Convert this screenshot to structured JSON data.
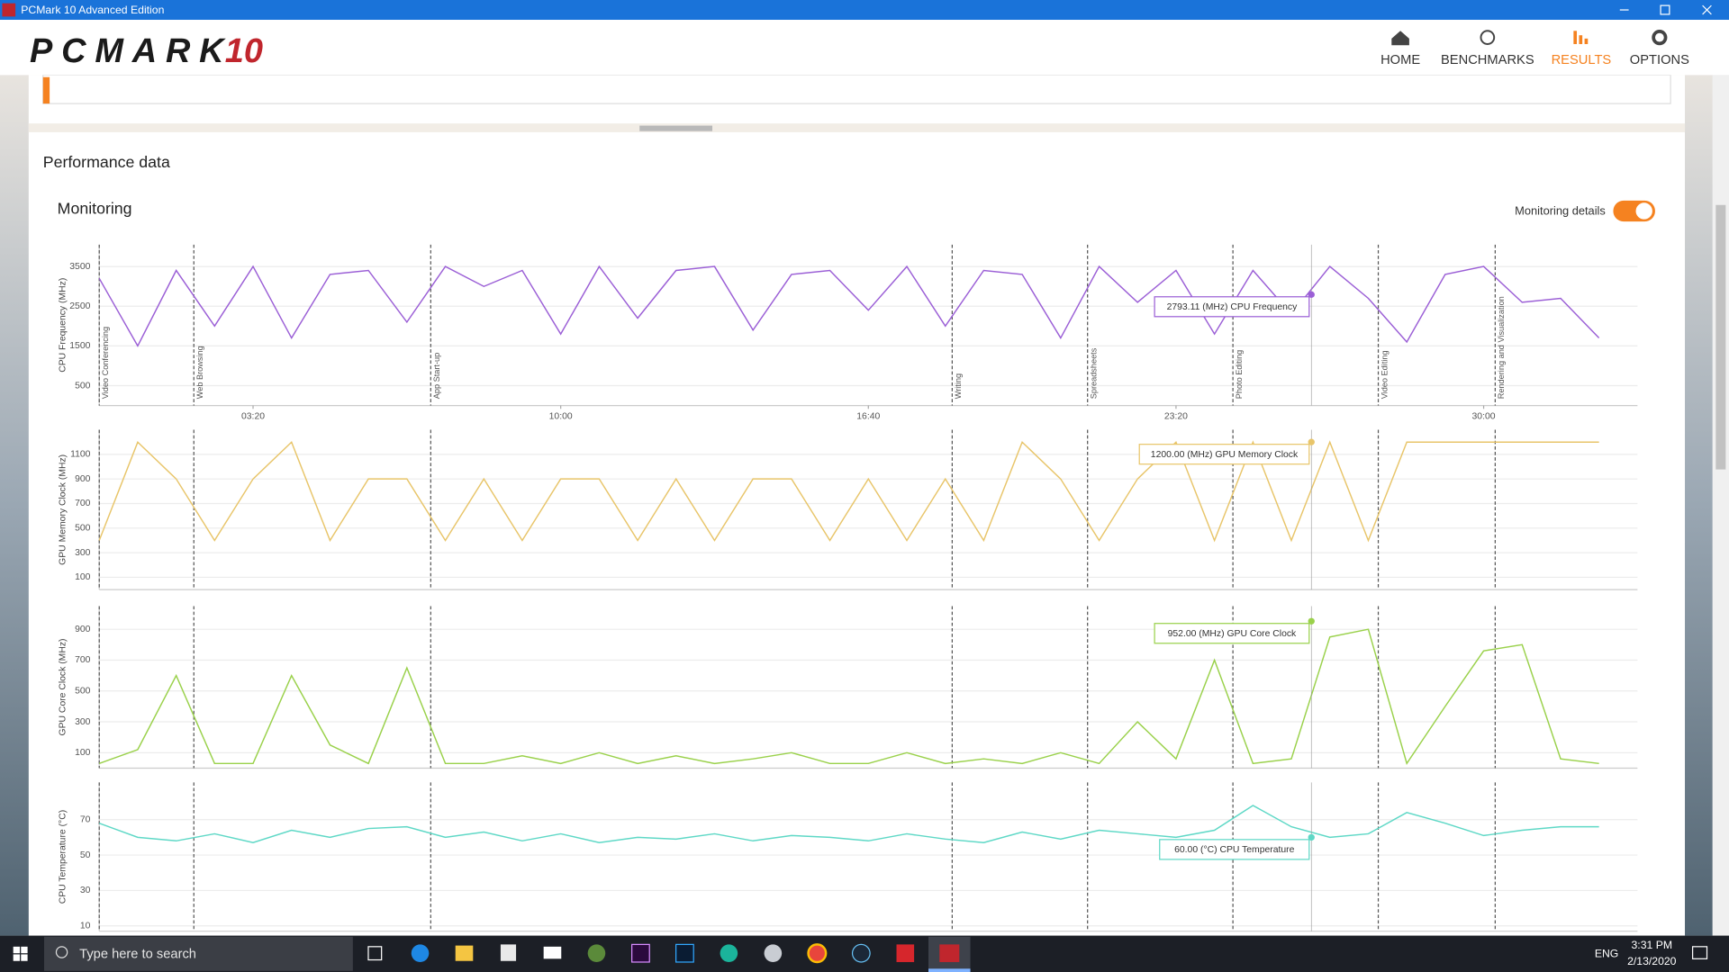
{
  "window": {
    "title": "PCMark 10 Advanced Edition"
  },
  "header": {
    "logo": "PCMARK",
    "logo_version": "10",
    "nav": [
      "HOME",
      "BENCHMARKS",
      "RESULTS",
      "OPTIONS"
    ]
  },
  "section": {
    "title": "Performance data",
    "subtitle": "Monitoring",
    "toggle_label": "Monitoring details"
  },
  "chart_data": [
    {
      "type": "line",
      "y_label": "CPU Frequency (MHz)",
      "color": "#9b5fd6",
      "xlim": [
        0,
        2000
      ],
      "ylim": [
        0,
        4050
      ],
      "yticks": [
        500,
        1500,
        2500,
        3500
      ],
      "xticks": [
        {
          "value": 200,
          "label": "03:20"
        },
        {
          "value": 600,
          "label": "10:00"
        },
        {
          "value": 1000,
          "label": "16:40"
        },
        {
          "value": 1400,
          "label": "23:20"
        },
        {
          "value": 1800,
          "label": "30:00"
        }
      ],
      "markers": [
        {
          "value": 0,
          "label": "Video Conferencing"
        },
        {
          "value": 123,
          "label": "Web Browsing"
        },
        {
          "value": 431,
          "label": "App Start-up"
        },
        {
          "value": 1109,
          "label": "Writing"
        },
        {
          "value": 1285,
          "label": "Spreadsheets"
        },
        {
          "value": 1474,
          "label": "Photo Editing"
        },
        {
          "value": 1663,
          "label": "Video Editing"
        },
        {
          "value": 1815,
          "label": "Rendering and Visualization"
        }
      ],
      "x": [
        0,
        50,
        100,
        150,
        200,
        250,
        300,
        350,
        400,
        450,
        500,
        550,
        600,
        650,
        700,
        750,
        800,
        850,
        900,
        950,
        1000,
        1050,
        1100,
        1150,
        1200,
        1250,
        1300,
        1350,
        1400,
        1450,
        1500,
        1550,
        1600,
        1650,
        1700,
        1750,
        1800,
        1850,
        1900,
        1950
      ],
      "values": [
        3200,
        1500,
        3400,
        2000,
        3500,
        1700,
        3300,
        3400,
        2100,
        3500,
        3000,
        3400,
        1800,
        3500,
        2200,
        3400,
        3500,
        1900,
        3300,
        3400,
        2400,
        3500,
        2000,
        3400,
        3300,
        1700,
        3500,
        2600,
        3400,
        1800,
        3400,
        2300,
        3500,
        2700,
        1600,
        3300,
        3500,
        2600,
        2700,
        1700
      ],
      "tooltip": {
        "x": 1576,
        "value": 2793.11,
        "label": "2793.11 (MHz) CPU Frequency"
      }
    },
    {
      "type": "line",
      "y_label": "GPU Memory Clock (MHz)",
      "color": "#e8c56a",
      "xlim": [
        0,
        2000
      ],
      "ylim": [
        0,
        1300
      ],
      "yticks": [
        100,
        300,
        500,
        700,
        900,
        1100
      ],
      "x": [
        0,
        50,
        100,
        150,
        200,
        250,
        300,
        350,
        400,
        450,
        500,
        550,
        600,
        650,
        700,
        750,
        800,
        850,
        900,
        950,
        1000,
        1050,
        1100,
        1150,
        1200,
        1250,
        1300,
        1350,
        1400,
        1450,
        1500,
        1550,
        1600,
        1650,
        1700,
        1750,
        1800,
        1850,
        1900,
        1950
      ],
      "values": [
        400,
        1200,
        900,
        400,
        900,
        1200,
        400,
        900,
        900,
        400,
        900,
        400,
        900,
        900,
        400,
        900,
        400,
        900,
        900,
        400,
        900,
        400,
        900,
        400,
        1200,
        900,
        400,
        900,
        1200,
        400,
        1200,
        400,
        1200,
        400,
        1200,
        1200,
        1200,
        1200,
        1200,
        1200
      ],
      "tooltip": {
        "x": 1576,
        "value": 1200,
        "label": "1200.00 (MHz) GPU Memory Clock"
      }
    },
    {
      "type": "line",
      "y_label": "GPU Core Clock (MHz)",
      "color": "#9ad14b",
      "xlim": [
        0,
        2000
      ],
      "ylim": [
        0,
        1050
      ],
      "yticks": [
        100,
        300,
        500,
        700,
        900
      ],
      "x": [
        0,
        50,
        100,
        150,
        200,
        250,
        300,
        350,
        400,
        450,
        500,
        550,
        600,
        650,
        700,
        750,
        800,
        850,
        900,
        950,
        1000,
        1050,
        1100,
        1150,
        1200,
        1250,
        1300,
        1350,
        1400,
        1450,
        1500,
        1550,
        1600,
        1650,
        1700,
        1750,
        1800,
        1850,
        1900,
        1950
      ],
      "values": [
        30,
        120,
        600,
        30,
        30,
        600,
        150,
        30,
        650,
        30,
        30,
        80,
        30,
        100,
        30,
        80,
        30,
        60,
        100,
        30,
        30,
        100,
        30,
        60,
        30,
        100,
        30,
        300,
        60,
        700,
        30,
        60,
        850,
        900,
        30,
        400,
        760,
        800,
        60,
        30
      ],
      "tooltip": {
        "x": 1576,
        "value": 952,
        "label": "952.00 (MHz) GPU Core Clock"
      }
    },
    {
      "type": "line",
      "y_label": "CPU Temperature (°C)",
      "color": "#5ed8c6",
      "xlim": [
        0,
        2000
      ],
      "ylim": [
        7,
        91
      ],
      "yticks": [
        10,
        30,
        50,
        70
      ],
      "x": [
        0,
        50,
        100,
        150,
        200,
        250,
        300,
        350,
        400,
        450,
        500,
        550,
        600,
        650,
        700,
        750,
        800,
        850,
        900,
        950,
        1000,
        1050,
        1100,
        1150,
        1200,
        1250,
        1300,
        1350,
        1400,
        1450,
        1500,
        1550,
        1600,
        1650,
        1700,
        1750,
        1800,
        1850,
        1900,
        1950
      ],
      "values": [
        68,
        60,
        58,
        62,
        57,
        64,
        60,
        65,
        66,
        60,
        63,
        58,
        62,
        57,
        60,
        59,
        62,
        58,
        61,
        60,
        58,
        62,
        59,
        57,
        63,
        59,
        64,
        62,
        60,
        64,
        78,
        66,
        60,
        62,
        74,
        68,
        61,
        64,
        66,
        66
      ],
      "tooltip": {
        "x": 1576,
        "value": 60,
        "label": "60.00 (°C) CPU Temperature"
      }
    }
  ],
  "taskbar": {
    "search": "Type here to search",
    "language": "ENG",
    "time": "3:31 PM",
    "date": "2/13/2020"
  }
}
